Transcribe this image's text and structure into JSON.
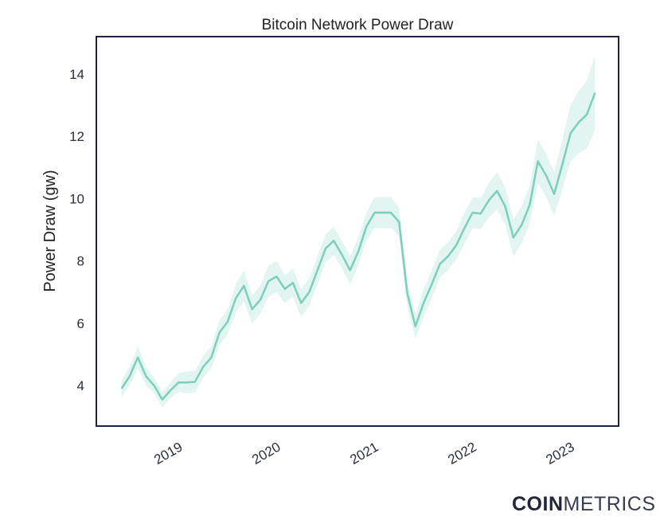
{
  "chart_data": {
    "type": "line",
    "title": "Bitcoin Network Power Draw",
    "xlabel": "",
    "ylabel": "Power Draw (gw)",
    "ylim": [
      2.7,
      15.2
    ],
    "xlim": [
      "2018-03-29",
      "2023-07-28"
    ],
    "yticks": [
      4,
      6,
      8,
      10,
      12,
      14
    ],
    "xticks": [
      "2019",
      "2020",
      "2021",
      "2022",
      "2023"
    ],
    "grid": false,
    "legend": "none",
    "line_color": "#7ccfbb",
    "band_color": "#e2f5f0",
    "x": [
      "2018-07",
      "2018-08",
      "2018-09",
      "2018-10",
      "2018-11",
      "2018-12",
      "2019-01",
      "2019-02",
      "2019-03",
      "2019-04",
      "2019-05",
      "2019-06",
      "2019-07",
      "2019-08",
      "2019-09",
      "2019-10",
      "2019-11",
      "2019-12",
      "2020-01",
      "2020-02",
      "2020-03",
      "2020-04",
      "2020-05",
      "2020-06",
      "2020-07",
      "2020-08",
      "2020-09",
      "2020-10",
      "2020-11",
      "2020-12",
      "2021-01",
      "2021-02",
      "2021-03",
      "2021-04",
      "2021-05",
      "2021-06",
      "2021-07",
      "2021-08",
      "2021-09",
      "2021-10",
      "2021-11",
      "2021-12",
      "2022-01",
      "2022-02",
      "2022-03",
      "2022-04",
      "2022-05",
      "2022-06",
      "2022-07",
      "2022-08",
      "2022-09",
      "2022-10",
      "2022-11",
      "2022-12",
      "2023-01",
      "2023-02",
      "2023-03",
      "2023-04",
      "2023-05"
    ],
    "series": [
      {
        "values": [
          3.9,
          4.3,
          4.9,
          4.3,
          4.0,
          3.55,
          3.85,
          4.1,
          4.1,
          4.12,
          4.6,
          4.9,
          5.7,
          6.05,
          6.8,
          7.2,
          6.45,
          6.75,
          7.35,
          7.5,
          7.1,
          7.3,
          6.65,
          7.0,
          7.7,
          8.4,
          8.65,
          8.2,
          7.7,
          8.3,
          9.1,
          9.55,
          9.55,
          9.55,
          9.25,
          6.97,
          5.9,
          6.65,
          7.25,
          7.9,
          8.15,
          8.5,
          9.05,
          9.55,
          9.52,
          9.95,
          10.25,
          9.75,
          8.75,
          9.15,
          9.8,
          11.2,
          10.75,
          10.15,
          11.1,
          12.1,
          12.45,
          12.7,
          13.4
        ],
        "band_halfwidth": [
          0.25,
          0.3,
          0.35,
          0.3,
          0.25,
          0.25,
          0.25,
          0.3,
          0.35,
          0.35,
          0.35,
          0.35,
          0.4,
          0.4,
          0.45,
          0.5,
          0.45,
          0.45,
          0.5,
          0.5,
          0.45,
          0.45,
          0.45,
          0.45,
          0.45,
          0.45,
          0.45,
          0.45,
          0.45,
          0.45,
          0.45,
          0.5,
          0.5,
          0.5,
          0.45,
          0.4,
          0.4,
          0.45,
          0.45,
          0.45,
          0.45,
          0.45,
          0.5,
          0.5,
          0.5,
          0.55,
          0.6,
          0.6,
          0.6,
          0.6,
          0.6,
          0.7,
          0.7,
          0.7,
          0.8,
          0.9,
          1.0,
          1.1,
          1.2
        ]
      }
    ]
  },
  "branding": {
    "logo_bold": "COIN",
    "logo_light": "METRICS"
  }
}
